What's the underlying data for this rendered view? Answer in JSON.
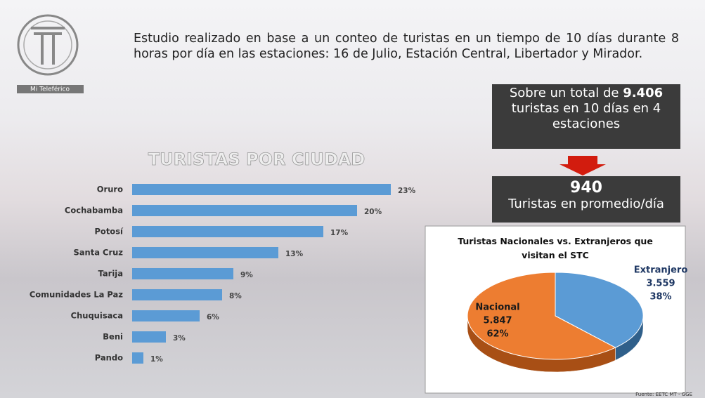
{
  "logo": {
    "text": "Mi Teleférico"
  },
  "intro": "Estudio realizado en base a un conteo de turistas en un tiempo de 10 días durante 8 horas por día en las estaciones: 16 de Julio, Estación Central, Libertador y Mirador.",
  "summary": {
    "lead": "Sobre un total de",
    "total": "9.406",
    "rest": "turistas en 10 días en 4 estaciones",
    "average": "940",
    "average_label": "Turistas en promedio/día"
  },
  "chart_data": [
    {
      "type": "bar",
      "orientation": "horizontal",
      "title": "TURISTAS POR CIUDAD",
      "categories": [
        "Oruro",
        "Cochabamba",
        "Potosí",
        "Santa Cruz",
        "Tarija",
        "Comunidades La Paz",
        "Chuquisaca",
        "Beni",
        "Pando"
      ],
      "values": [
        23,
        20,
        17,
        13,
        9,
        8,
        6,
        3,
        1
      ],
      "value_labels": [
        "23%",
        "20%",
        "17%",
        "13%",
        "9%",
        "8%",
        "6%",
        "3%",
        "1%"
      ],
      "color": "#5b9bd5"
    },
    {
      "type": "pie",
      "title": "Turistas Nacionales vs. Extranjeros que visitan el STC",
      "categories": [
        "Extranjero",
        "Nacional"
      ],
      "values": [
        38,
        62
      ],
      "value_labels": [
        "38%",
        "62%"
      ],
      "counts": [
        "3.559",
        "5.847"
      ],
      "colors": [
        "#5b9bd5",
        "#ed7d31"
      ]
    }
  ],
  "source": "Fuente: EETC MT - GGE"
}
